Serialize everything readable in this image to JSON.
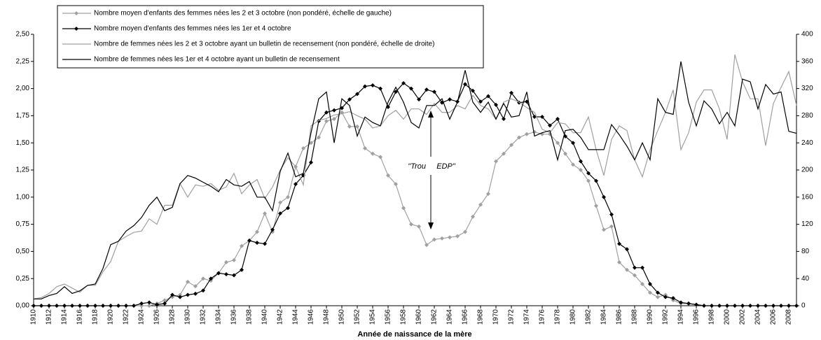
{
  "chart_data": {
    "type": "line",
    "x_label": "Année de naissance de la mère",
    "annotation": "\"Trou     EDP\"",
    "legend": "top-left",
    "grid": false,
    "xlim": [
      1910,
      2009
    ],
    "xticks": [
      1910,
      1912,
      1914,
      1916,
      1918,
      1920,
      1922,
      1924,
      1926,
      1928,
      1930,
      1932,
      1934,
      1936,
      1938,
      1940,
      1942,
      1944,
      1946,
      1948,
      1950,
      1952,
      1954,
      1956,
      1958,
      1960,
      1962,
      1964,
      1966,
      1968,
      1970,
      1972,
      1974,
      1976,
      1978,
      1980,
      1982,
      1984,
      1986,
      1988,
      1990,
      1992,
      1994,
      1996,
      1998,
      2000,
      2002,
      2004,
      2006,
      2008
    ],
    "ylim": [
      0,
      2.5
    ],
    "yticks": [
      {
        "value": 0,
        "label": "0,00"
      },
      {
        "value": 0.25,
        "label": "0,25"
      },
      {
        "value": 0.5,
        "label": "0,50"
      },
      {
        "value": 0.75,
        "label": "0,75"
      },
      {
        "value": 1,
        "label": "1,00"
      },
      {
        "value": 1.25,
        "label": "1,25"
      },
      {
        "value": 1.5,
        "label": "1,50"
      },
      {
        "value": 1.75,
        "label": "1,75"
      },
      {
        "value": 2,
        "label": "2,00"
      },
      {
        "value": 2.25,
        "label": "2,25"
      },
      {
        "value": 2.5,
        "label": "2,50"
      }
    ],
    "y2lim": [
      0,
      400
    ],
    "y2ticks": [
      0,
      40,
      80,
      120,
      160,
      200,
      240,
      280,
      320,
      360,
      400
    ],
    "x": [
      1910,
      1911,
      1912,
      1913,
      1914,
      1915,
      1916,
      1917,
      1918,
      1919,
      1920,
      1921,
      1922,
      1923,
      1924,
      1925,
      1926,
      1927,
      1928,
      1929,
      1930,
      1931,
      1932,
      1933,
      1934,
      1935,
      1936,
      1937,
      1938,
      1939,
      1940,
      1941,
      1942,
      1943,
      1944,
      1945,
      1946,
      1947,
      1948,
      1949,
      1950,
      1951,
      1952,
      1953,
      1954,
      1955,
      1956,
      1957,
      1958,
      1959,
      1960,
      1961,
      1962,
      1963,
      1964,
      1965,
      1966,
      1967,
      1968,
      1969,
      1970,
      1971,
      1972,
      1973,
      1974,
      1975,
      1976,
      1977,
      1978,
      1979,
      1980,
      1981,
      1982,
      1983,
      1984,
      1985,
      1986,
      1987,
      1988,
      1989,
      1990,
      1991,
      1992,
      1993,
      1994,
      1995,
      1996,
      1997,
      1998,
      1999,
      2000,
      2001,
      2002,
      2003,
      2004,
      2005,
      2006,
      2007,
      2008,
      2009
    ],
    "series": [
      {
        "name": "Nombre moyen d'enfants des femmes nées les 2 et 3 octobre (non pondéré, échelle de gauche)",
        "color": "#a0a0a0",
        "marker": "diamond",
        "values": [
          0,
          0,
          0,
          0,
          0,
          0,
          0,
          0,
          0,
          0,
          0,
          0,
          0,
          0,
          0,
          0,
          0.02,
          0.05,
          0.08,
          0.1,
          0.22,
          0.18,
          0.25,
          0.23,
          0.3,
          0.4,
          0.42,
          0.55,
          0.6,
          0.68,
          0.85,
          0.68,
          0.95,
          1,
          1.28,
          1.45,
          1.5,
          1.55,
          1.7,
          1.72,
          1.78,
          1.65,
          1.65,
          1.45,
          1.4,
          1.37,
          1.2,
          1.12,
          0.9,
          0.75,
          0.73,
          0.56,
          0.61,
          0.62,
          0.63,
          0.64,
          0.68,
          0.82,
          0.93,
          1.03,
          1.33,
          1.4,
          1.48,
          1.55,
          1.58,
          1.6,
          1.58,
          1.58,
          1.5,
          1.4,
          1.3,
          1.25,
          1.15,
          0.92,
          0.7,
          0.73,
          0.4,
          0.33,
          0.28,
          0.2,
          0.12,
          0.08,
          0.1,
          0.05,
          0.02,
          0.02,
          0.01,
          0,
          0,
          0,
          0,
          0,
          0,
          0,
          0,
          0,
          0,
          0,
          0,
          0
        ]
      },
      {
        "name": "Nombre moyen d'enfants des femmes nées les 1er et 4 octobre",
        "color": "#000000",
        "marker": "diamond",
        "values": [
          0,
          0,
          0,
          0,
          0,
          0,
          0,
          0,
          0,
          0,
          0,
          0,
          0,
          0,
          0.02,
          0.03,
          0.01,
          0.02,
          0.1,
          0.08,
          0.1,
          0.11,
          0.14,
          0.25,
          0.3,
          0.29,
          0.28,
          0.33,
          0.6,
          0.58,
          0.57,
          0.7,
          0.85,
          0.9,
          1.12,
          1.2,
          1.32,
          1.7,
          1.78,
          1.8,
          1.82,
          1.9,
          1.95,
          2.02,
          2.03,
          2,
          1.83,
          1.97,
          2.05,
          2,
          1.9,
          1.99,
          1.97,
          1.87,
          1.9,
          1.88,
          2.04,
          1.98,
          1.88,
          1.93,
          1.85,
          1.72,
          1.96,
          1.87,
          1.88,
          1.74,
          1.74,
          1.66,
          1.72,
          1.56,
          1.5,
          1.33,
          1.22,
          1.15,
          1,
          0.84,
          0.57,
          0.52,
          0.35,
          0.35,
          0.2,
          0.12,
          0.08,
          0.07,
          0.03,
          0.02,
          0.01,
          0,
          0,
          0,
          0,
          0,
          0,
          0,
          0,
          0,
          0,
          0,
          0,
          0
        ]
      },
      {
        "name": "Nombre de femmes nées les 2 et 3 octobre ayant un bulletin de recensement (non pondéré, échelle de droite)",
        "color": "#a0a0a0",
        "axis": "y2",
        "values": [
          10,
          12,
          18,
          28,
          32,
          26,
          20,
          30,
          30,
          50,
          65,
          95,
          102,
          108,
          110,
          128,
          120,
          148,
          148,
          180,
          160,
          178,
          176,
          180,
          170,
          175,
          195,
          165,
          178,
          186,
          158,
          175,
          200,
          218,
          205,
          178,
          265,
          273,
          276,
          281,
          283,
          286,
          280,
          275,
          262,
          265,
          280,
          288,
          275,
          290,
          290,
          282,
          298,
          285,
          285,
          295,
          290,
          310,
          295,
          290,
          275,
          300,
          305,
          300,
          292,
          285,
          260,
          255,
          270,
          268,
          255,
          255,
          278,
          230,
          192,
          245,
          265,
          258,
          215,
          190,
          230,
          258,
          285,
          318,
          230,
          255,
          300,
          318,
          318,
          290,
          245,
          370,
          330,
          305,
          305,
          236,
          298,
          322,
          345,
          295
        ]
      },
      {
        "name": "Nombre de femmes nées les 1er et 4 octobre ayant un bulletin de recensement",
        "color": "#000000",
        "axis": "y2",
        "values": [
          10,
          10,
          15,
          18,
          28,
          18,
          22,
          30,
          32,
          55,
          90,
          95,
          110,
          118,
          130,
          148,
          160,
          140,
          145,
          180,
          192,
          188,
          182,
          176,
          168,
          186,
          178,
          176,
          183,
          160,
          160,
          140,
          198,
          225,
          190,
          195,
          255,
          305,
          315,
          240,
          305,
          295,
          250,
          278,
          270,
          265,
          300,
          322,
          300,
          270,
          262,
          295,
          295,
          305,
          275,
          300,
          347,
          300,
          285,
          300,
          275,
          298,
          278,
          280,
          315,
          250,
          255,
          258,
          215,
          258,
          260,
          248,
          230,
          230,
          230,
          267,
          252,
          235,
          215,
          240,
          215,
          305,
          285,
          282,
          360,
          300,
          265,
          302,
          290,
          268,
          285,
          265,
          334,
          330,
          290,
          326,
          312,
          315,
          257,
          254
        ]
      }
    ]
  }
}
